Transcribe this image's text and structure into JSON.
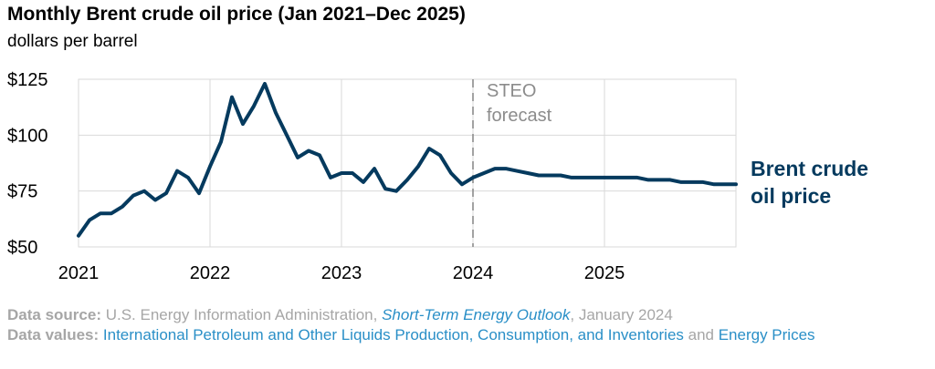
{
  "title": "Monthly Brent crude oil price (Jan 2021–Dec 2025)",
  "subtitle": "dollars per barrel",
  "source": {
    "source_label": "Data source:",
    "source_org": " U.S. Energy Information Administration, ",
    "source_pub": "Short-Term Energy Outlook",
    "source_date": ", January 2024",
    "values_label": "Data values:",
    "values_link1": "International Petroleum and Other Liquids Production, Consumption, and Inventories",
    "values_and": " and ",
    "values_link2": "Energy Prices"
  },
  "colors": {
    "series": "#053a5e",
    "grid": "#d9d9d9",
    "forecast_line": "#8c8c8c",
    "forecast_text": "#8c8c8c",
    "source_gray": "#a6a6a6",
    "link_blue": "#2a8fc7"
  },
  "chart_data": {
    "type": "line",
    "xlim": [
      2021,
      2026
    ],
    "ylim": [
      50,
      125
    ],
    "x_ticks": [
      2021,
      2022,
      2023,
      2024,
      2025
    ],
    "x_tick_labels": [
      "2021",
      "2022",
      "2023",
      "2024",
      "2025"
    ],
    "y_ticks": [
      50,
      75,
      100,
      125
    ],
    "y_tick_labels": [
      "$50",
      "$75",
      "$100",
      "$125"
    ],
    "grid": true,
    "forecast_start": 2024,
    "forecast_label": [
      "STEO",
      "forecast"
    ],
    "series": [
      {
        "name": "Brent crude oil price",
        "label_lines": [
          "Brent crude",
          "oil price"
        ],
        "x": [
          "2021-01",
          "2021-02",
          "2021-03",
          "2021-04",
          "2021-05",
          "2021-06",
          "2021-07",
          "2021-08",
          "2021-09",
          "2021-10",
          "2021-11",
          "2021-12",
          "2022-01",
          "2022-02",
          "2022-03",
          "2022-04",
          "2022-05",
          "2022-06",
          "2022-07",
          "2022-08",
          "2022-09",
          "2022-10",
          "2022-11",
          "2022-12",
          "2023-01",
          "2023-02",
          "2023-03",
          "2023-04",
          "2023-05",
          "2023-06",
          "2023-07",
          "2023-08",
          "2023-09",
          "2023-10",
          "2023-11",
          "2023-12",
          "2024-01",
          "2024-02",
          "2024-03",
          "2024-04",
          "2024-05",
          "2024-06",
          "2024-07",
          "2024-08",
          "2024-09",
          "2024-10",
          "2024-11",
          "2024-12",
          "2025-01",
          "2025-02",
          "2025-03",
          "2025-04",
          "2025-05",
          "2025-06",
          "2025-07",
          "2025-08",
          "2025-09",
          "2025-10",
          "2025-11",
          "2025-12"
        ],
        "values": [
          55,
          62,
          65,
          65,
          68,
          73,
          75,
          71,
          74,
          84,
          81,
          74,
          86,
          97,
          117,
          105,
          113,
          123,
          110,
          100,
          90,
          93,
          91,
          81,
          83,
          83,
          79,
          85,
          76,
          75,
          80,
          86,
          94,
          91,
          83,
          78,
          81,
          83,
          85,
          85,
          84,
          83,
          82,
          82,
          82,
          81,
          81,
          81,
          81,
          81,
          81,
          81,
          80,
          80,
          80,
          79,
          79,
          79,
          78,
          78
        ]
      }
    ]
  }
}
